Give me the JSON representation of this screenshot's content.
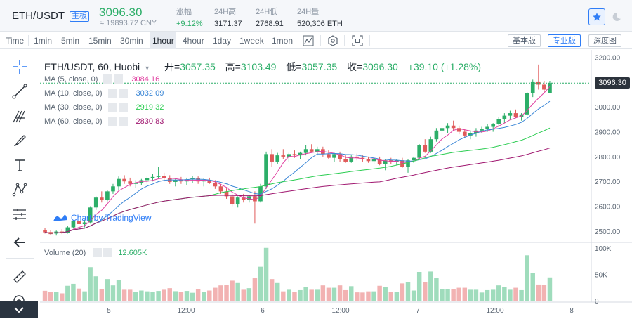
{
  "ticker": {
    "pair": "ETH/USDT",
    "badge": "主板",
    "last_price": "3096.30",
    "cny_price": "≈ 19893.72 CNY",
    "stats": [
      {
        "label": "涨幅",
        "value": "+9.12%",
        "up": true
      },
      {
        "label": "24H高",
        "value": "3171.37"
      },
      {
        "label": "24H低",
        "value": "2768.91"
      },
      {
        "label": "24H量",
        "value": "520,306 ETH"
      }
    ]
  },
  "toolbar": {
    "timeframes": [
      "Time",
      "1min",
      "5min",
      "15min",
      "30min",
      "1hour",
      "4hour",
      "1day",
      "1week",
      "1mon"
    ],
    "active_timeframe": "1hour",
    "views": [
      "基本版",
      "专业版",
      "深度图"
    ],
    "active_view": "专业版"
  },
  "legend": {
    "symbol": "ETH/USDT, 60, Huobi",
    "open_label": "开=",
    "open": "3057.35",
    "high_label": "高=",
    "high": "3103.49",
    "low_label": "低=",
    "low": "3057.35",
    "close_label": "收=",
    "close": "3096.30",
    "change": "+39.10 (+1.28%)"
  },
  "ma": [
    {
      "label": "MA (5, close, 0)",
      "value": "3084.16",
      "color": "#e040a0"
    },
    {
      "label": "MA (10, close, 0)",
      "value": "3032.09",
      "color": "#3a86d6"
    },
    {
      "label": "MA (30, close, 0)",
      "value": "2919.32",
      "color": "#2ccd52"
    },
    {
      "label": "MA (60, close, 0)",
      "value": "2830.83",
      "color": "#a01870"
    }
  ],
  "volume": {
    "label": "Volume (20)",
    "value": "12.605K"
  },
  "watermark": "Chart by TradingView",
  "last_tag": "3096.30",
  "colors": {
    "up": "#2cae68",
    "down": "#e05a5a",
    "up_vol": "#9fdcbc",
    "down_vol": "#f2b2b2",
    "accent": "#2f7df6"
  },
  "chart_data": {
    "type": "candlestick",
    "price_axis": {
      "ticks": [
        "3200.00",
        "3100.00",
        "3000.00",
        "2900.00",
        "2800.00",
        "2700.00",
        "2600.00",
        "2500.00"
      ],
      "ylim": [
        2460,
        3230
      ]
    },
    "volume_axis": {
      "ticks": [
        "100K",
        "50K",
        "0"
      ],
      "ylim": [
        0,
        105
      ]
    },
    "time_axis": {
      "ticks": [
        "5",
        "12:00",
        "6",
        "12:00",
        "7",
        "12:00",
        "8"
      ]
    },
    "candles": [
      [
        2505,
        2512,
        2490,
        2495
      ],
      [
        2496,
        2505,
        2485,
        2488
      ],
      [
        2490,
        2502,
        2482,
        2498
      ],
      [
        2498,
        2508,
        2488,
        2494
      ],
      [
        2494,
        2520,
        2490,
        2515
      ],
      [
        2515,
        2545,
        2510,
        2540
      ],
      [
        2540,
        2560,
        2520,
        2528
      ],
      [
        2528,
        2545,
        2515,
        2535
      ],
      [
        2535,
        2600,
        2530,
        2595
      ],
      [
        2595,
        2640,
        2585,
        2635
      ],
      [
        2635,
        2660,
        2615,
        2625
      ],
      [
        2625,
        2665,
        2620,
        2660
      ],
      [
        2660,
        2690,
        2650,
        2680
      ],
      [
        2680,
        2720,
        2665,
        2710
      ],
      [
        2710,
        2725,
        2690,
        2700
      ],
      [
        2700,
        2715,
        2680,
        2690
      ],
      [
        2690,
        2705,
        2675,
        2695
      ],
      [
        2695,
        2710,
        2685,
        2705
      ],
      [
        2705,
        2720,
        2690,
        2712
      ],
      [
        2712,
        2730,
        2700,
        2718
      ],
      [
        2718,
        2760,
        2710,
        2722
      ],
      [
        2722,
        2735,
        2700,
        2712
      ],
      [
        2712,
        2725,
        2690,
        2698
      ],
      [
        2698,
        2712,
        2680,
        2705
      ],
      [
        2705,
        2718,
        2690,
        2700
      ],
      [
        2700,
        2715,
        2685,
        2708
      ],
      [
        2708,
        2722,
        2695,
        2712
      ],
      [
        2712,
        2720,
        2690,
        2700
      ],
      [
        2700,
        2712,
        2680,
        2705
      ],
      [
        2705,
        2715,
        2690,
        2695
      ],
      [
        2695,
        2705,
        2670,
        2680
      ],
      [
        2680,
        2690,
        2650,
        2660
      ],
      [
        2660,
        2672,
        2630,
        2640
      ],
      [
        2640,
        2650,
        2600,
        2610
      ],
      [
        2610,
        2640,
        2595,
        2635
      ],
      [
        2635,
        2650,
        2615,
        2625
      ],
      [
        2625,
        2645,
        2615,
        2640
      ],
      [
        2640,
        2660,
        2530,
        2620
      ],
      [
        2620,
        2690,
        2615,
        2680
      ],
      [
        2680,
        2820,
        2670,
        2810
      ],
      [
        2810,
        2830,
        2760,
        2780
      ],
      [
        2780,
        2815,
        2770,
        2805
      ],
      [
        2805,
        2830,
        2790,
        2800
      ],
      [
        2800,
        2815,
        2780,
        2810
      ],
      [
        2810,
        2825,
        2795,
        2805
      ],
      [
        2805,
        2820,
        2790,
        2815
      ],
      [
        2815,
        2845,
        2805,
        2830
      ],
      [
        2830,
        2850,
        2815,
        2820
      ],
      [
        2820,
        2840,
        2805,
        2830
      ],
      [
        2830,
        2840,
        2800,
        2810
      ],
      [
        2810,
        2825,
        2790,
        2795
      ],
      [
        2795,
        2815,
        2780,
        2810
      ],
      [
        2810,
        2820,
        2780,
        2790
      ],
      [
        2790,
        2805,
        2775,
        2780
      ],
      [
        2780,
        2805,
        2775,
        2800
      ],
      [
        2800,
        2812,
        2785,
        2795
      ],
      [
        2795,
        2805,
        2780,
        2790
      ],
      [
        2790,
        2800,
        2775,
        2782
      ],
      [
        2782,
        2795,
        2770,
        2790
      ],
      [
        2790,
        2800,
        2765,
        2770
      ],
      [
        2770,
        2790,
        2745,
        2785
      ],
      [
        2785,
        2795,
        2770,
        2778
      ],
      [
        2778,
        2790,
        2765,
        2785
      ],
      [
        2785,
        2795,
        2755,
        2760
      ],
      [
        2760,
        2790,
        2735,
        2785
      ],
      [
        2785,
        2800,
        2775,
        2795
      ],
      [
        2795,
        2850,
        2790,
        2845
      ],
      [
        2845,
        2870,
        2815,
        2820
      ],
      [
        2820,
        2880,
        2815,
        2870
      ],
      [
        2870,
        2915,
        2860,
        2905
      ],
      [
        2905,
        2925,
        2880,
        2915
      ],
      [
        2915,
        2935,
        2895,
        2925
      ],
      [
        2925,
        2945,
        2905,
        2915
      ],
      [
        2915,
        2925,
        2890,
        2900
      ],
      [
        2900,
        2910,
        2875,
        2885
      ],
      [
        2885,
        2905,
        2870,
        2895
      ],
      [
        2895,
        2915,
        2880,
        2905
      ],
      [
        2905,
        2920,
        2895,
        2910
      ],
      [
        2910,
        2930,
        2900,
        2920
      ],
      [
        2920,
        2935,
        2900,
        2930
      ],
      [
        2930,
        2960,
        2920,
        2950
      ],
      [
        2950,
        2975,
        2935,
        2965
      ],
      [
        2965,
        2985,
        2950,
        2975
      ],
      [
        2975,
        2990,
        2955,
        2960
      ],
      [
        2960,
        2975,
        2945,
        2970
      ],
      [
        2970,
        3060,
        2965,
        3055
      ],
      [
        3055,
        3110,
        3040,
        3100
      ],
      [
        3100,
        3171,
        3070,
        3090
      ],
      [
        3090,
        3105,
        3060,
        3070
      ],
      [
        3057,
        3103,
        3057,
        3096
      ]
    ],
    "ma5_last": 3084.16,
    "ma10_last": 3032.09,
    "ma30_last": 2919.32,
    "ma60_last": 2830.83
  }
}
